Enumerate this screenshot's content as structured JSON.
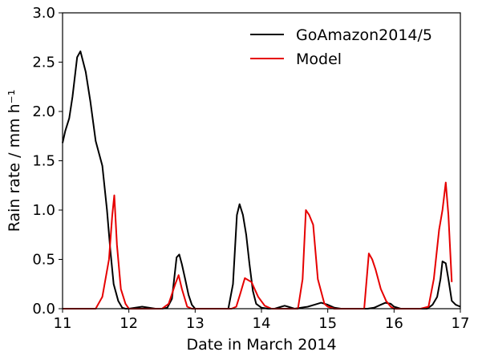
{
  "chart_data": {
    "type": "line",
    "xlabel": "Date in March 2014",
    "ylabel": "Rain rate / mm h⁻¹",
    "xlim": [
      11,
      17
    ],
    "ylim": [
      0,
      3.0
    ],
    "x_ticks": [
      11,
      12,
      13,
      14,
      15,
      16,
      17
    ],
    "x_tick_labels": [
      "11",
      "12",
      "13",
      "14",
      "15",
      "16",
      "17"
    ],
    "y_ticks": [
      0,
      0.5,
      1.0,
      1.5,
      2.0,
      2.5,
      3.0
    ],
    "y_tick_labels": [
      "0.0",
      "0.5",
      "1.0",
      "1.5",
      "2.0",
      "2.5",
      "3.0"
    ],
    "grid": false,
    "legend_position": "top-right",
    "series": [
      {
        "name": "GoAmazon2014/5",
        "color": "#000000",
        "x": [
          11.0,
          11.04,
          11.1,
          11.15,
          11.22,
          11.27,
          11.35,
          11.42,
          11.5,
          11.6,
          11.67,
          11.72,
          11.77,
          11.84,
          11.9,
          11.95,
          12.0,
          12.1,
          12.2,
          12.3,
          12.4,
          12.5,
          12.58,
          12.65,
          12.72,
          12.76,
          12.8,
          12.85,
          12.9,
          12.95,
          13.0,
          13.1,
          13.2,
          13.3,
          13.4,
          13.5,
          13.57,
          13.63,
          13.67,
          13.72,
          13.77,
          13.82,
          13.87,
          13.92,
          14.0,
          14.1,
          14.2,
          14.3,
          14.35,
          14.4,
          14.5,
          14.6,
          14.7,
          14.8,
          14.9,
          15.0,
          15.1,
          15.2,
          15.3,
          15.4,
          15.5,
          15.6,
          15.7,
          15.8,
          15.87,
          15.95,
          16.0,
          16.1,
          16.2,
          16.3,
          16.4,
          16.5,
          16.58,
          16.65,
          16.7,
          16.73,
          16.78,
          16.82,
          16.87,
          16.93,
          17.0
        ],
        "y": [
          1.68,
          1.8,
          1.93,
          2.15,
          2.55,
          2.61,
          2.4,
          2.1,
          1.7,
          1.45,
          1.0,
          0.6,
          0.25,
          0.08,
          0.01,
          0.0,
          0.0,
          0.01,
          0.02,
          0.01,
          0.0,
          0.0,
          0.01,
          0.1,
          0.52,
          0.55,
          0.45,
          0.3,
          0.14,
          0.04,
          0.0,
          0.0,
          0.0,
          0.0,
          0.0,
          0.0,
          0.25,
          0.95,
          1.06,
          0.95,
          0.75,
          0.45,
          0.18,
          0.05,
          0.01,
          0.0,
          0.0,
          0.02,
          0.03,
          0.02,
          0.0,
          0.01,
          0.02,
          0.04,
          0.06,
          0.04,
          0.01,
          0.0,
          0.0,
          0.0,
          0.0,
          0.0,
          0.01,
          0.04,
          0.06,
          0.05,
          0.02,
          0.0,
          0.0,
          0.0,
          0.0,
          0.0,
          0.04,
          0.12,
          0.3,
          0.48,
          0.46,
          0.3,
          0.08,
          0.04,
          0.02
        ]
      },
      {
        "name": "Model",
        "color": "#e60000",
        "x": [
          11.0,
          11.2,
          11.4,
          11.5,
          11.6,
          11.7,
          11.75,
          11.78,
          11.82,
          11.88,
          11.95,
          12.0,
          12.2,
          12.4,
          12.5,
          12.6,
          12.7,
          12.75,
          12.8,
          12.88,
          12.95,
          13.0,
          13.2,
          13.4,
          13.55,
          13.62,
          13.68,
          13.75,
          13.85,
          13.95,
          14.05,
          14.15,
          14.3,
          14.4,
          14.55,
          14.62,
          14.67,
          14.72,
          14.78,
          14.85,
          14.95,
          15.0,
          15.1,
          15.2,
          15.3,
          15.4,
          15.5,
          15.55,
          15.62,
          15.67,
          15.72,
          15.8,
          15.88,
          15.95,
          16.0,
          16.2,
          16.4,
          16.52,
          16.6,
          16.68,
          16.73,
          16.78,
          16.82,
          16.87
        ],
        "y": [
          0.0,
          0.0,
          0.0,
          0.0,
          0.12,
          0.5,
          0.95,
          1.15,
          0.65,
          0.2,
          0.05,
          0.0,
          0.0,
          0.0,
          0.0,
          0.05,
          0.25,
          0.34,
          0.2,
          0.02,
          0.0,
          0.0,
          0.0,
          0.0,
          0.0,
          0.02,
          0.15,
          0.31,
          0.27,
          0.12,
          0.03,
          0.0,
          0.0,
          0.0,
          0.0,
          0.3,
          1.0,
          0.95,
          0.85,
          0.3,
          0.05,
          0.02,
          0.0,
          0.0,
          0.0,
          0.0,
          0.0,
          0.0,
          0.56,
          0.5,
          0.4,
          0.2,
          0.08,
          0.02,
          0.0,
          0.0,
          0.0,
          0.02,
          0.3,
          0.8,
          1.0,
          1.28,
          0.95,
          0.27
        ]
      }
    ]
  }
}
